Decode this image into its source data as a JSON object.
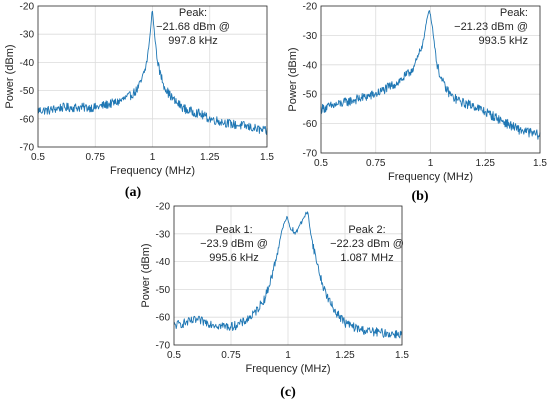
{
  "chart_data": [
    {
      "type": "line",
      "caption": "(a)",
      "xlabel": "Frequency (MHz)",
      "ylabel": "Power (dBm)",
      "xlim": [
        0.5,
        1.5
      ],
      "ylim": [
        -70,
        -20
      ],
      "xticks": [
        "0.5",
        "0.75",
        "1",
        "1.25",
        "1.5"
      ],
      "yticks": [
        "-20",
        "-30",
        "-40",
        "-50",
        "-60",
        "-70"
      ],
      "grid": true,
      "annotations": [
        {
          "lines": [
            "Peak:",
            "−21.68 dBm @",
            "997.8 kHz"
          ],
          "align": "middle"
        }
      ],
      "series": [
        {
          "color": "#1f77b4",
          "x": [
            0.5,
            0.55,
            0.6,
            0.65,
            0.7,
            0.75,
            0.8,
            0.85,
            0.9,
            0.93,
            0.95,
            0.97,
            0.98,
            0.99,
            0.998,
            1.0,
            1.01,
            1.02,
            1.03,
            1.05,
            1.07,
            1.1,
            1.15,
            1.2,
            1.25,
            1.3,
            1.35,
            1.4,
            1.45,
            1.5
          ],
          "y": [
            -57,
            -57,
            -56,
            -56,
            -56,
            -56,
            -55,
            -54,
            -52,
            -50,
            -47,
            -42,
            -37,
            -30,
            -21.7,
            -22,
            -31,
            -38,
            -43,
            -48,
            -51,
            -54,
            -57,
            -58,
            -60,
            -61,
            -62,
            -62.5,
            -63.5,
            -64.5
          ]
        }
      ]
    },
    {
      "type": "line",
      "caption": "(b)",
      "xlabel": "Frequency (MHz)",
      "ylabel": "Power (dBm)",
      "xlim": [
        0.5,
        1.5
      ],
      "ylim": [
        -70,
        -20
      ],
      "xticks": [
        "0.5",
        "0.75",
        "1",
        "1.25",
        "1.5"
      ],
      "yticks": [
        "-20",
        "-30",
        "-40",
        "-50",
        "-60",
        "-70"
      ],
      "grid": true,
      "annotations": [
        {
          "lines": [
            "Peak:",
            "−21.23 dBm @",
            "993.5 kHz"
          ],
          "align": "end"
        }
      ],
      "series": [
        {
          "color": "#1f77b4",
          "x": [
            0.5,
            0.55,
            0.6,
            0.65,
            0.7,
            0.75,
            0.8,
            0.85,
            0.9,
            0.93,
            0.95,
            0.97,
            0.98,
            0.994,
            1.0,
            1.01,
            1.02,
            1.03,
            1.05,
            1.07,
            1.1,
            1.15,
            1.2,
            1.25,
            1.3,
            1.35,
            1.4,
            1.45,
            1.5
          ],
          "y": [
            -55,
            -54,
            -53,
            -52,
            -51,
            -50,
            -48,
            -46,
            -43,
            -40,
            -36,
            -31,
            -26,
            -21.2,
            -23,
            -28,
            -34,
            -40,
            -45,
            -48,
            -51,
            -53,
            -54,
            -56,
            -58,
            -60,
            -62,
            -63,
            -64
          ]
        }
      ]
    },
    {
      "type": "line",
      "caption": "(c)",
      "xlabel": "Frequency (MHz)",
      "ylabel": "Power (dBm)",
      "xlim": [
        0.5,
        1.5
      ],
      "ylim": [
        -70,
        -20
      ],
      "xticks": [
        "0.5",
        "0.75",
        "1",
        "1.25",
        "1.5"
      ],
      "yticks": [
        "-20",
        "-30",
        "-40",
        "-50",
        "-60",
        "-70"
      ],
      "grid": true,
      "annotations": [
        {
          "lines": [
            "Peak 1:",
            "−23.9 dBm @",
            "995.6 kHz"
          ],
          "align": "middle"
        },
        {
          "lines": [
            "Peak 2:",
            "−22.23 dBm @",
            "1.087 MHz"
          ],
          "align": "middle"
        }
      ],
      "series": [
        {
          "color": "#1f77b4",
          "x": [
            0.5,
            0.55,
            0.6,
            0.65,
            0.7,
            0.75,
            0.8,
            0.85,
            0.9,
            0.93,
            0.95,
            0.97,
            0.98,
            0.996,
            1.01,
            1.03,
            1.05,
            1.07,
            1.087,
            1.1,
            1.12,
            1.15,
            1.18,
            1.2,
            1.25,
            1.3,
            1.35,
            1.4,
            1.45,
            1.5
          ],
          "y": [
            -63,
            -62,
            -61,
            -62,
            -63,
            -63.5,
            -62,
            -59,
            -53,
            -45,
            -38,
            -30,
            -27,
            -23.9,
            -28,
            -30,
            -27,
            -24,
            -22.2,
            -30,
            -38,
            -48,
            -54,
            -57,
            -62,
            -64,
            -65,
            -65.5,
            -66,
            -66
          ]
        }
      ]
    }
  ]
}
